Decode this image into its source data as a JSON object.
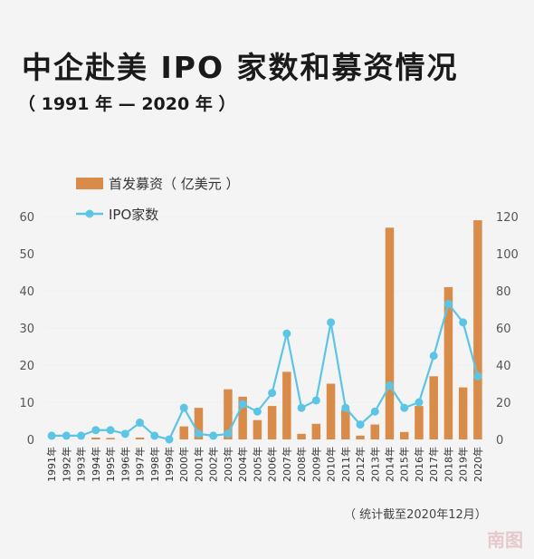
{
  "header": {
    "title": "中企赴美 IPO 家数和募资情况",
    "subtitle": "（ 1991 年 — 2020 年 ）"
  },
  "colors": {
    "bar": "#d98c4a",
    "line": "#5cc5e6",
    "grid": "#e6e6e6"
  },
  "chart_data": {
    "type": "bar",
    "categories": [
      "1991年",
      "1992年",
      "1993年",
      "1994年",
      "1995年",
      "1996年",
      "1997年",
      "1998年",
      "1999年",
      "2000年",
      "2001年",
      "2002年",
      "2003年",
      "2004年",
      "2005年",
      "2006年",
      "2007年",
      "2008年",
      "2009年",
      "2010年",
      "2011年",
      "2012年",
      "2013年",
      "2014年",
      "2015年",
      "2016年",
      "2017年",
      "2018年",
      "2019年",
      "2020年"
    ],
    "series": [
      {
        "name": "首发募资（ 亿美元 ）",
        "type": "bar",
        "axis": "left",
        "values": [
          0,
          0,
          0,
          0.5,
          0.4,
          0,
          0.5,
          0,
          0,
          3.5,
          8.5,
          0,
          13.5,
          11.5,
          5.2,
          9,
          18.2,
          1.5,
          4.2,
          15,
          8,
          1,
          4,
          57,
          2,
          9,
          17,
          41,
          14,
          59
        ]
      },
      {
        "name": "IPO家数",
        "type": "line",
        "axis": "right",
        "values": [
          2,
          2,
          2,
          5,
          5,
          3,
          9,
          2,
          0,
          17,
          3,
          2,
          3,
          19,
          15,
          25,
          57,
          17,
          21,
          63,
          17,
          8,
          15,
          29,
          17,
          20,
          45,
          73,
          63,
          34
        ]
      }
    ],
    "y_left": {
      "min": 0,
      "max": 60,
      "ticks": [
        0,
        10,
        20,
        30,
        40,
        50,
        60
      ]
    },
    "y_right": {
      "min": 0,
      "max": 120,
      "ticks": [
        0,
        20,
        40,
        60,
        80,
        100,
        120
      ]
    },
    "legend": "top-left",
    "grid": false,
    "note": "（ 统计截至2020年12月）"
  },
  "watermark": "南图"
}
